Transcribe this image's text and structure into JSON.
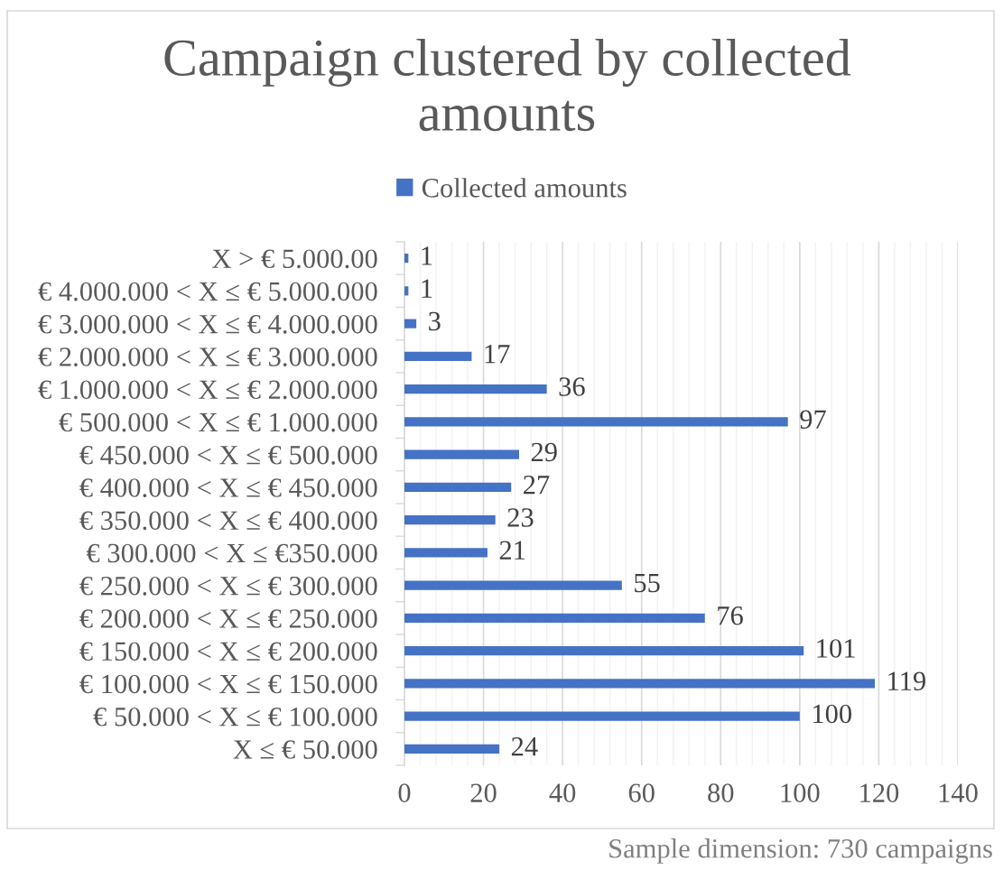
{
  "chart_data": {
    "type": "bar",
    "orientation": "horizontal",
    "title": "Campaign clustered by collected amounts",
    "categories": [
      "X > € 5.000.00",
      "€ 4.000.000 < X ≤ € 5.000.000",
      "€ 3.000.000 < X ≤ € 4.000.000",
      "€ 2.000.000 < X ≤ € 3.000.000",
      "€ 1.000.000 < X ≤ € 2.000.000",
      "€ 500.000 < X ≤ € 1.000.000",
      "€ 450.000 < X ≤ € 500.000",
      "€ 400.000 < X ≤ € 450.000",
      "€ 350.000 < X ≤ € 400.000",
      "€ 300.000 < X ≤ €350.000",
      "€ 250.000 < X ≤ € 300.000",
      "€ 200.000 < X ≤ € 250.000",
      "€ 150.000 < X ≤ € 200.000",
      "€ 100.000 < X ≤ € 150.000",
      "€ 50.000 < X ≤ € 100.000",
      "X ≤ € 50.000"
    ],
    "series": [
      {
        "name": "Collected amounts",
        "color": "#4472c4",
        "values": [
          1,
          1,
          3,
          17,
          36,
          97,
          29,
          27,
          23,
          21,
          55,
          76,
          101,
          119,
          100,
          24
        ]
      }
    ],
    "xlim": [
      0,
      140
    ],
    "xticks": [
      0,
      {
        "value": 4,
        "label": null
      },
      {
        "value": 8,
        "label": null
      },
      {
        "value": 12,
        "label": null
      },
      {
        "value": 16,
        "label": null
      },
      20,
      {
        "value": 24,
        "label": null
      },
      {
        "value": 28,
        "label": null
      },
      {
        "value": 32,
        "label": null
      },
      {
        "value": 36,
        "label": null
      },
      40,
      {
        "value": 44,
        "label": null
      },
      {
        "value": 48,
        "label": null
      },
      {
        "value": 52,
        "label": null
      },
      {
        "value": 56,
        "label": null
      },
      60,
      {
        "value": 64,
        "label": null
      },
      {
        "value": 68,
        "label": null
      },
      {
        "value": 72,
        "label": null
      },
      {
        "value": 76,
        "label": null
      },
      80,
      {
        "value": 84,
        "label": null
      },
      {
        "value": 88,
        "label": null
      },
      {
        "value": 92,
        "label": null
      },
      {
        "value": 96,
        "label": null
      },
      100,
      {
        "value": 104,
        "label": null
      },
      {
        "value": 108,
        "label": null
      },
      {
        "value": 112,
        "label": null
      },
      {
        "value": 116,
        "label": null
      },
      120,
      {
        "value": 124,
        "label": null
      },
      {
        "value": 128,
        "label": null
      },
      {
        "value": 132,
        "label": null
      },
      {
        "value": 136,
        "label": null
      },
      140
    ],
    "grid": "x",
    "legend": "top",
    "data_labels": true,
    "annotations": [
      "Sample dimension: 730 campaigns"
    ]
  }
}
